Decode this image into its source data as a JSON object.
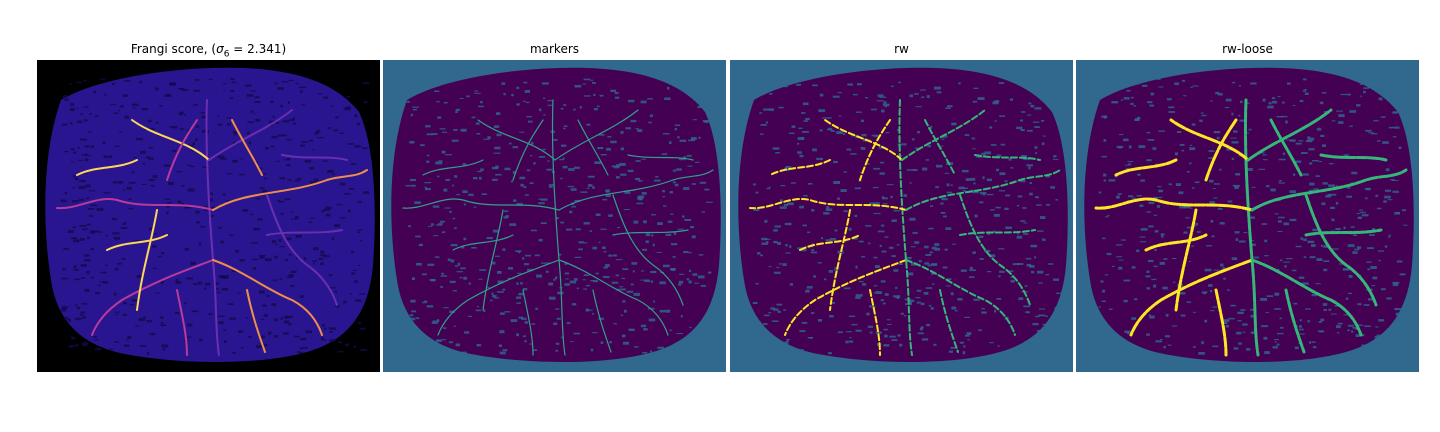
{
  "figure": {
    "panels": [
      {
        "id": "frangi",
        "title_prefix": "Frangi score, (",
        "title_symbol": "σ",
        "title_subscript": "6",
        "title_suffix": " = 2.341)",
        "colormap": "plasma",
        "background_color": "#000000",
        "tissue_color": "#2a1590",
        "vessel_colors": [
          "#6a2fb0",
          "#b83a9a",
          "#ef8e4a",
          "#ffd65a"
        ]
      },
      {
        "id": "markers",
        "title": "markers",
        "colormap": "viridis",
        "background_color": "#30688e",
        "tissue_color": "#440154",
        "vessel_colors": [
          "#31a08a"
        ]
      },
      {
        "id": "rw",
        "title": "rw",
        "colormap": "viridis",
        "background_color": "#30688e",
        "tissue_color": "#440154",
        "vessel_colors": [
          "#35b779",
          "#fde725"
        ]
      },
      {
        "id": "rw-loose",
        "title": "rw-loose",
        "colormap": "viridis",
        "background_color": "#30688e",
        "tissue_color": "#440154",
        "vessel_colors": [
          "#35b779",
          "#fde725"
        ]
      }
    ]
  }
}
